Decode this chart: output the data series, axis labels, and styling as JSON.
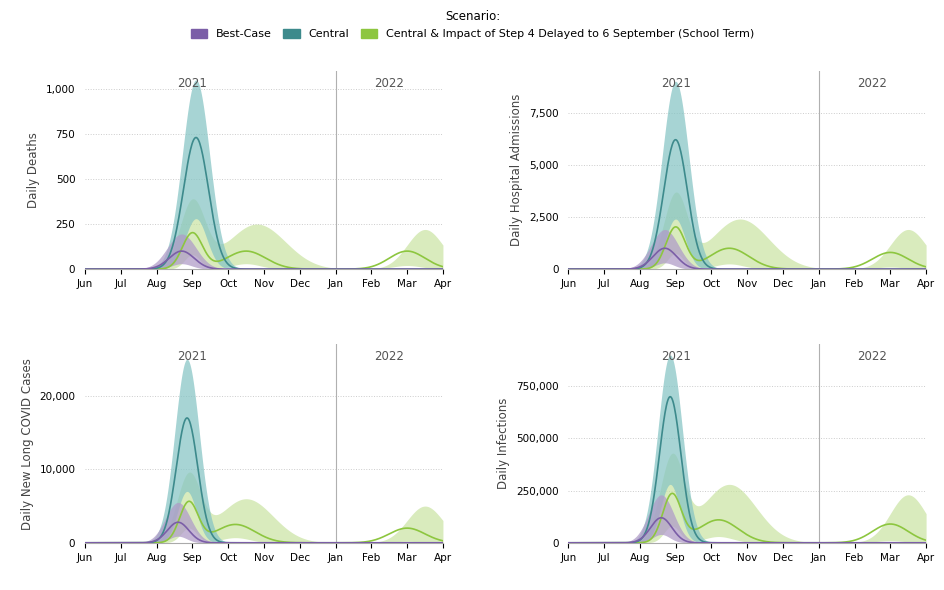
{
  "legend_title": "Scenario:",
  "legend_items": [
    "Best-Case",
    "Central",
    "Central & Impact of Step 4 Delayed to 6 September (School Term)"
  ],
  "colors": {
    "purple": "#7B5EA7",
    "purple_light": "#B09CC8",
    "teal": "#3D8A8C",
    "teal_light": "#85C4C4",
    "green": "#8DC63F",
    "green_light": "#C5E19A"
  },
  "subplots": [
    {
      "ylabel": "Daily Deaths",
      "ylim": [
        0,
        1100
      ],
      "yticks": [
        0,
        250,
        500,
        750,
        1000
      ]
    },
    {
      "ylabel": "Daily Hospital Admissions",
      "ylim": [
        0,
        9500
      ],
      "yticks": [
        0,
        2500,
        5000,
        7500
      ]
    },
    {
      "ylabel": "Daily New Long COVID Cases",
      "ylim": [
        0,
        27000
      ],
      "yticks": [
        0,
        10000,
        20000
      ]
    },
    {
      "ylabel": "Daily Infections",
      "ylim": [
        0,
        950000
      ],
      "yticks": [
        0,
        250000,
        500000,
        750000
      ]
    }
  ],
  "x_tick_labels": [
    "Jun",
    "Jul",
    "Aug",
    "Sep",
    "Oct",
    "Nov",
    "Dec",
    "Jan",
    "Feb",
    "Mar",
    "Apr"
  ]
}
